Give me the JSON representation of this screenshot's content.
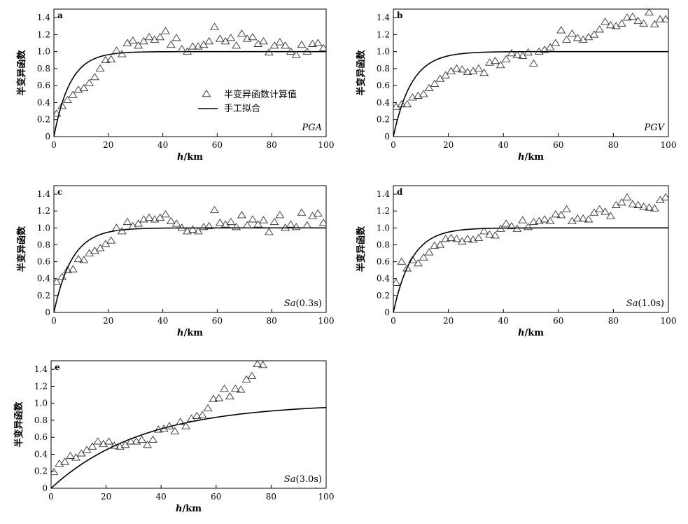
{
  "chart_data": [
    {
      "type": "scatter",
      "panel": "a",
      "corner_label": "PGA",
      "xlabel": "h/km",
      "ylabel": "半变异函数",
      "xlim": [
        0,
        100
      ],
      "ylim": [
        0,
        1.5
      ],
      "xticks": [
        "0",
        "20",
        "40",
        "60",
        "80",
        "100"
      ],
      "yticks": [
        "0",
        "0.2",
        "0.4",
        "0.6",
        "0.8",
        "1.0",
        "1.2",
        "1.4"
      ],
      "legend": {
        "placement": "center",
        "points_label": "半变异函数计算值",
        "line_label": "手工拟合"
      },
      "series": [
        {
          "name": "半变异函数计算值",
          "kind": "points",
          "x": [
            1,
            3,
            5,
            7,
            9,
            11,
            13,
            15,
            17,
            19,
            21,
            23,
            25,
            27,
            29,
            31,
            33,
            35,
            37,
            39,
            41,
            43,
            45,
            47,
            49,
            51,
            53,
            55,
            57,
            59,
            61,
            63,
            65,
            67,
            69,
            71,
            73,
            75,
            77,
            79,
            81,
            83,
            85,
            87,
            89,
            91,
            93,
            95,
            97,
            99
          ],
          "y": [
            0.27,
            0.36,
            0.43,
            0.49,
            0.55,
            0.57,
            0.63,
            0.7,
            0.8,
            0.9,
            0.91,
            1.01,
            0.97,
            1.1,
            1.13,
            1.07,
            1.12,
            1.17,
            1.14,
            1.17,
            1.24,
            1.08,
            1.16,
            1.03,
            1.0,
            1.06,
            1.06,
            1.08,
            1.12,
            1.29,
            1.15,
            1.12,
            1.16,
            1.07,
            1.21,
            1.15,
            1.17,
            1.09,
            1.12,
            0.99,
            1.07,
            1.11,
            1.07,
            1.0,
            0.96,
            1.08,
            1.0,
            1.09,
            1.1,
            1.04
          ]
        },
        {
          "name": "手工拟合",
          "kind": "line",
          "model": "exponential",
          "nugget": 0,
          "sill": 1.0,
          "range_km": 18
        }
      ]
    },
    {
      "type": "scatter",
      "panel": "b",
      "corner_label": "PGV",
      "xlabel": "h/km",
      "ylabel": "半变异函数",
      "xlim": [
        0,
        100
      ],
      "ylim": [
        0,
        1.5
      ],
      "xticks": [
        "0",
        "20",
        "40",
        "60",
        "80",
        "100"
      ],
      "yticks": [
        "0",
        "0.2",
        "0.4",
        "0.6",
        "0.8",
        "1.0",
        "1.2",
        "1.4"
      ],
      "series": [
        {
          "name": "半变异函数计算值",
          "kind": "points",
          "x": [
            1,
            3,
            5,
            7,
            9,
            11,
            13,
            15,
            17,
            19,
            21,
            23,
            25,
            27,
            29,
            31,
            33,
            35,
            37,
            39,
            41,
            43,
            45,
            47,
            49,
            51,
            53,
            55,
            57,
            59,
            61,
            63,
            65,
            67,
            69,
            71,
            73,
            75,
            77,
            79,
            81,
            83,
            85,
            87,
            89,
            91,
            93,
            95,
            97,
            99
          ],
          "y": [
            0.35,
            0.38,
            0.38,
            0.46,
            0.48,
            0.5,
            0.57,
            0.62,
            0.68,
            0.72,
            0.77,
            0.8,
            0.79,
            0.76,
            0.77,
            0.8,
            0.75,
            0.87,
            0.89,
            0.84,
            0.91,
            0.98,
            0.96,
            0.95,
            0.99,
            0.86,
            1.0,
            1.02,
            1.05,
            1.1,
            1.25,
            1.14,
            1.21,
            1.16,
            1.14,
            1.17,
            1.2,
            1.26,
            1.35,
            1.31,
            1.3,
            1.33,
            1.4,
            1.41,
            1.36,
            1.33,
            1.46,
            1.32,
            1.38,
            1.38
          ]
        },
        {
          "name": "手工拟合",
          "kind": "line",
          "model": "exponential",
          "nugget": 0,
          "sill": 1.0,
          "range_km": 20
        }
      ]
    },
    {
      "type": "scatter",
      "panel": "c",
      "corner_label": "Sa(0.3s)",
      "xlabel": "h/km",
      "ylabel": "半变异函数",
      "xlim": [
        0,
        100
      ],
      "ylim": [
        0,
        1.5
      ],
      "xticks": [
        "0",
        "20",
        "40",
        "60",
        "80",
        "100"
      ],
      "yticks": [
        "0",
        "0.2",
        "0.4",
        "0.6",
        "0.8",
        "1.0",
        "1.2",
        "1.4"
      ],
      "series": [
        {
          "name": "半变异函数计算值",
          "kind": "points",
          "x": [
            1,
            3,
            5,
            7,
            9,
            11,
            13,
            15,
            17,
            19,
            21,
            23,
            25,
            27,
            29,
            31,
            33,
            35,
            37,
            39,
            41,
            43,
            45,
            47,
            49,
            51,
            53,
            55,
            57,
            59,
            61,
            63,
            65,
            67,
            69,
            71,
            73,
            75,
            77,
            79,
            81,
            83,
            85,
            87,
            89,
            91,
            93,
            95,
            97,
            99
          ],
          "y": [
            0.36,
            0.42,
            0.5,
            0.51,
            0.63,
            0.62,
            0.7,
            0.73,
            0.76,
            0.81,
            0.85,
            1.0,
            0.96,
            1.07,
            1.02,
            1.05,
            1.1,
            1.12,
            1.1,
            1.12,
            1.16,
            1.08,
            1.05,
            1.0,
            0.96,
            0.98,
            0.96,
            1.01,
            1.02,
            1.21,
            1.06,
            1.04,
            1.07,
            1.01,
            1.15,
            1.03,
            1.1,
            1.04,
            1.09,
            0.95,
            1.07,
            1.15,
            1.0,
            1.04,
            1.01,
            1.18,
            1.03,
            1.14,
            1.17,
            1.06
          ]
        },
        {
          "name": "手工拟合",
          "kind": "line",
          "model": "exponential",
          "nugget": 0,
          "sill": 1.0,
          "range_km": 20
        }
      ]
    },
    {
      "type": "scatter",
      "panel": "d",
      "corner_label": "Sa(1.0s)",
      "xlabel": "h/km",
      "ylabel": "半变异函数",
      "xlim": [
        0,
        100
      ],
      "ylim": [
        0,
        1.5
      ],
      "xticks": [
        "0",
        "20",
        "40",
        "60",
        "80",
        "100"
      ],
      "yticks": [
        "0",
        "0.2",
        "0.4",
        "0.6",
        "0.8",
        "1.0",
        "1.2",
        "1.4"
      ],
      "series": [
        {
          "name": "半变异函数计算值",
          "kind": "points",
          "x": [
            1,
            3,
            5,
            7,
            9,
            11,
            13,
            15,
            17,
            19,
            21,
            23,
            25,
            27,
            29,
            31,
            33,
            35,
            37,
            39,
            41,
            43,
            45,
            47,
            49,
            51,
            53,
            55,
            57,
            59,
            61,
            63,
            65,
            67,
            69,
            71,
            73,
            75,
            77,
            79,
            81,
            83,
            85,
            87,
            89,
            91,
            93,
            95,
            97,
            99
          ],
          "y": [
            0.35,
            0.6,
            0.52,
            0.62,
            0.58,
            0.65,
            0.71,
            0.79,
            0.8,
            0.87,
            0.88,
            0.87,
            0.84,
            0.87,
            0.86,
            0.88,
            0.96,
            0.92,
            0.91,
            0.99,
            1.05,
            1.02,
            0.99,
            1.09,
            1.01,
            1.07,
            1.08,
            1.1,
            1.08,
            1.16,
            1.15,
            1.22,
            1.08,
            1.11,
            1.11,
            1.1,
            1.18,
            1.22,
            1.19,
            1.14,
            1.27,
            1.3,
            1.36,
            1.28,
            1.27,
            1.25,
            1.24,
            1.23,
            1.33,
            1.36
          ]
        },
        {
          "name": "手工拟合",
          "kind": "line",
          "model": "exponential",
          "nugget": 0,
          "sill": 1.0,
          "range_km": 20
        }
      ]
    },
    {
      "type": "scatter",
      "panel": "e",
      "corner_label": "Sa(3.0s)",
      "xlabel": "h/km",
      "ylabel": "半变异函数",
      "xlim": [
        0,
        100
      ],
      "ylim": [
        0,
        1.5
      ],
      "xticks": [
        "0",
        "20",
        "40",
        "60",
        "80",
        "100"
      ],
      "yticks": [
        "0",
        "0.2",
        "0.4",
        "0.6",
        "0.8",
        "1.0",
        "1.2",
        "1.4"
      ],
      "series": [
        {
          "name": "半变异函数计算值",
          "kind": "points",
          "x": [
            1,
            3,
            5,
            7,
            9,
            11,
            13,
            15,
            17,
            19,
            21,
            23,
            25,
            27,
            29,
            31,
            33,
            35,
            37,
            39,
            41,
            43,
            45,
            47,
            49,
            51,
            53,
            55,
            57,
            59,
            61,
            63,
            65,
            67,
            69,
            71,
            73,
            75,
            77
          ],
          "y": [
            0.19,
            0.29,
            0.31,
            0.38,
            0.36,
            0.41,
            0.45,
            0.49,
            0.55,
            0.52,
            0.55,
            0.5,
            0.49,
            0.51,
            0.55,
            0.55,
            0.57,
            0.51,
            0.57,
            0.69,
            0.7,
            0.73,
            0.67,
            0.78,
            0.73,
            0.82,
            0.85,
            0.86,
            0.94,
            1.05,
            1.06,
            1.17,
            1.08,
            1.17,
            1.16,
            1.28,
            1.32,
            1.46,
            1.45
          ]
        },
        {
          "name": "手工拟合",
          "kind": "line",
          "model": "exponential",
          "nugget": 0,
          "sill": 1.0,
          "range_km": 100
        }
      ]
    }
  ]
}
